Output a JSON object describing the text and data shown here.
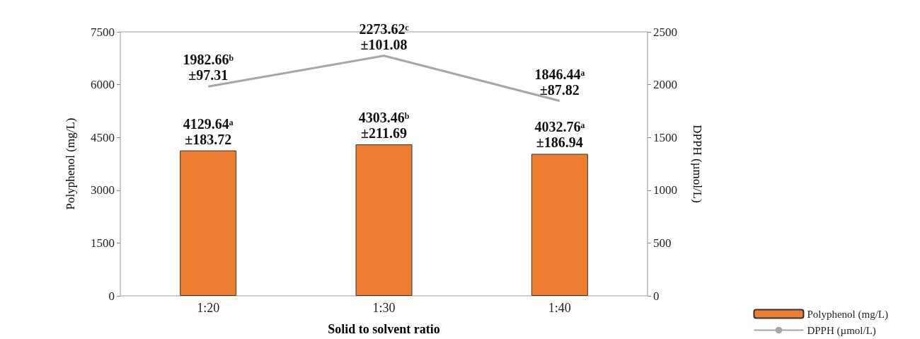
{
  "chart_data": {
    "type": "bar",
    "xlabel": "Solid to solvent ratio",
    "ylabel": "Polyphenol (mg/L)",
    "y2label": "DPPH (µmol/L)",
    "categories": [
      "1:20",
      "1:30",
      "1:40"
    ],
    "series": [
      {
        "name": "Polyphenol (mg/L)",
        "color": "#ed7d31",
        "values": [
          4129.64,
          4303.46,
          4032.76
        ],
        "value_labels": [
          "4129.64ᵃ\n±183.72",
          "4303.46ᵇ\n±211.69",
          "4032.76ᵃ\n±186.94"
        ]
      },
      {
        "name": "DPPH (µmol/L)",
        "type": "line",
        "axis": "y2",
        "color": "#a6a6a6",
        "values": [
          1982.66,
          2273.62,
          1846.44
        ],
        "value_labels": [
          "1982.66ᵇ\n±97.31",
          "2273.62ᶜ\n±101.08",
          "1846.44ᵃ\n±87.82"
        ]
      }
    ],
    "ylim": [
      0,
      7500
    ],
    "yticks": [
      0,
      1500,
      3000,
      4500,
      6000,
      7500
    ],
    "y2lim": [
      0,
      2500
    ],
    "y2ticks": [
      0,
      500,
      1000,
      1500,
      2000,
      2500
    ],
    "grid": false,
    "legend": "bottom right",
    "marker": "none",
    "line_style": "solid"
  }
}
